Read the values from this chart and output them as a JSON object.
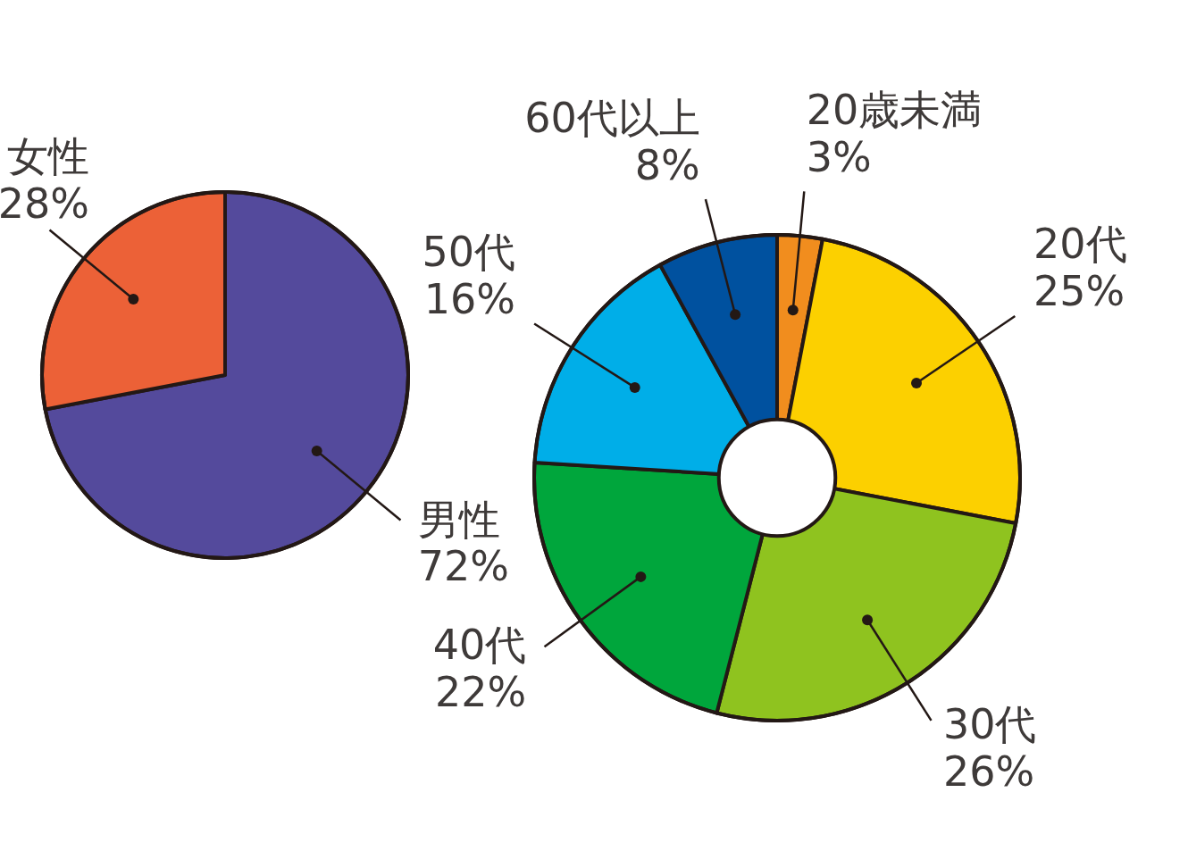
{
  "chart_data": [
    {
      "type": "pie",
      "categories": [
        "男性",
        "女性"
      ],
      "values": [
        72,
        28
      ],
      "value_labels": [
        "72%",
        "28%"
      ],
      "colors": [
        "#544a9c",
        "#ec6137"
      ]
    },
    {
      "type": "donut",
      "categories": [
        "20歳未満",
        "20代",
        "30代",
        "40代",
        "50代",
        "60代以上"
      ],
      "values": [
        3,
        25,
        26,
        22,
        16,
        8
      ],
      "value_labels": [
        "3%",
        "25%",
        "26%",
        "22%",
        "16%",
        "8%"
      ],
      "colors": [
        "#f18d1e",
        "#fcd000",
        "#8fc31f",
        "#00a63c",
        "#00aee8",
        "#00519f"
      ]
    }
  ]
}
